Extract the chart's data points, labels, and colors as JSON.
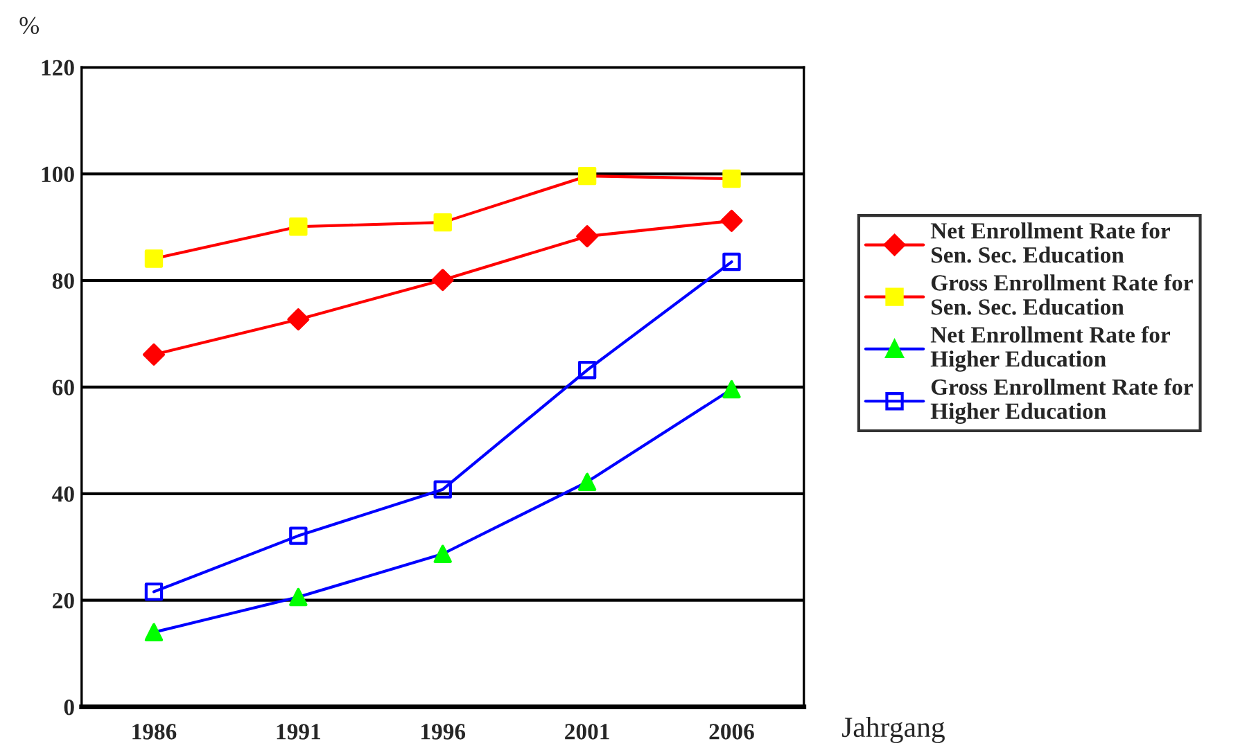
{
  "chart_data": {
    "type": "line",
    "ylabel": "%",
    "xlabel": "Jahrgang",
    "categories": [
      "1986",
      "1991",
      "1996",
      "2001",
      "2006"
    ],
    "series": [
      {
        "name": "Net Enrollment Rate for\nSen. Sec. Education",
        "color": "#ff0000",
        "marker": "diamond",
        "colors": [
          "#ff0000",
          "#ff0000",
          "#ff0000",
          "#ff0000",
          "#ff0000"
        ],
        "values": [
          66.1,
          72.7,
          80.1,
          88.3,
          91.2
        ]
      },
      {
        "name": "Gross Enrollment Rate for\nSen. Sec. Education",
        "color": "#ff0000",
        "marker": "square",
        "colors": [
          "#ffff00",
          "#ffff00",
          "#ffff00",
          "#ffff00",
          "#ffff00"
        ],
        "values": [
          84.1,
          90.1,
          90.9,
          99.6,
          99.1
        ]
      },
      {
        "name": "Net Enrollment Rate for\nHigher Education",
        "color": "#0000ff",
        "marker": "triangle",
        "colors": [
          "#00ff00",
          "#00ff00",
          "#00ff00",
          "#00ff00",
          "#00ff00"
        ],
        "values": [
          14.0,
          20.6,
          28.7,
          42.2,
          59.6
        ]
      },
      {
        "name": "Gross Enrollment Rate for\nHigher Education",
        "color": "#0000ff",
        "marker": "square",
        "values": [
          21.6,
          32.1,
          40.8,
          63.2,
          83.5
        ]
      }
    ],
    "ylim": [
      0,
      120
    ],
    "yticks": [
      0,
      20,
      40,
      60,
      80,
      100,
      120
    ],
    "grid": "y",
    "legend": "right"
  }
}
